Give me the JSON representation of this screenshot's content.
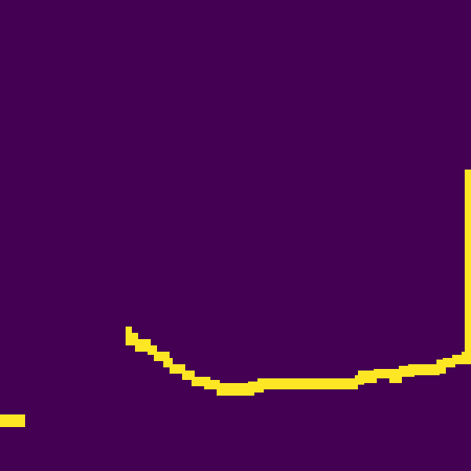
{
  "colors": {
    "background": "#440154",
    "mask": "#fde725"
  },
  "image": {
    "kind": "binary-mask",
    "description": "",
    "shape": "curve-segment"
  }
}
